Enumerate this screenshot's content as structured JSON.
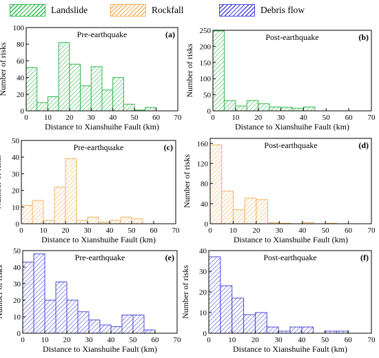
{
  "legend": {
    "items": [
      {
        "label": "Landslide",
        "color": "#2db84a"
      },
      {
        "label": "Rockfall",
        "color": "#f2b15e"
      },
      {
        "label": "Debris flow",
        "color": "#4848d8"
      }
    ]
  },
  "chart_data": [
    {
      "type": "bar",
      "panel_label": "(a)",
      "title": "Pre-earthquake",
      "series_name": "Landslide",
      "color": "#2db84a",
      "bin_edges": [
        0,
        5,
        10,
        15,
        20,
        25,
        30,
        35,
        40,
        45,
        50,
        55,
        60
      ],
      "values": [
        52,
        10,
        17,
        82,
        56,
        30,
        53,
        25,
        40,
        8,
        1,
        4
      ],
      "xlabel": "Distance to Xianshuihe Fault (km)",
      "ylabel": "Number of risks",
      "xlim": [
        0,
        70
      ],
      "ylim": [
        0,
        100
      ],
      "xticks": [
        0,
        10,
        20,
        30,
        40,
        50,
        60,
        70
      ],
      "yticks": [
        0,
        20,
        40,
        60,
        80,
        100
      ]
    },
    {
      "type": "bar",
      "panel_label": "(b)",
      "title": "Post-earthquake",
      "series_name": "Landslide",
      "color": "#2db84a",
      "bin_edges": [
        0,
        5,
        10,
        15,
        20,
        25,
        30,
        35,
        40,
        45
      ],
      "values": [
        248,
        32,
        15,
        32,
        22,
        12,
        11,
        8,
        12
      ],
      "xlabel": "Distance to Xianshuihe Fault (km)",
      "ylabel": "Number of risks",
      "xlim": [
        0,
        70
      ],
      "ylim": [
        0,
        250
      ],
      "xticks": [
        0,
        10,
        20,
        30,
        40,
        50,
        60,
        70
      ],
      "yticks": [
        0,
        50,
        100,
        150,
        200,
        250
      ]
    },
    {
      "type": "bar",
      "panel_label": "(c)",
      "title": "Pre-earthquake",
      "series_name": "Rockfall",
      "color": "#f2b15e",
      "bin_edges": [
        0,
        5,
        10,
        15,
        20,
        25,
        30,
        35,
        40,
        45,
        50,
        55
      ],
      "values": [
        11,
        14,
        2,
        22,
        39,
        2,
        4,
        1,
        2,
        4,
        3
      ],
      "xlabel": "Distance to Xianshuihe Fault (km)",
      "ylabel": "Number of risks",
      "xlim": [
        0,
        70
      ],
      "ylim": [
        0,
        50
      ],
      "xticks": [
        0,
        10,
        20,
        30,
        40,
        50,
        60,
        70
      ],
      "yticks": [
        0,
        10,
        20,
        30,
        40,
        50
      ]
    },
    {
      "type": "bar",
      "panel_label": "(d)",
      "title": "Post-earthquake",
      "series_name": "Rockfall",
      "color": "#f2b15e",
      "bin_edges": [
        0,
        5,
        10,
        15,
        20,
        25,
        30,
        35,
        40,
        45,
        50,
        55
      ],
      "values": [
        157,
        65,
        28,
        51,
        48,
        2,
        1,
        0,
        2,
        0,
        1
      ],
      "xlabel": "Distance to Xianshuihe Fault (km)",
      "ylabel": "Number of risks",
      "xlim": [
        0,
        70
      ],
      "ylim": [
        0,
        170
      ],
      "xticks": [
        0,
        10,
        20,
        30,
        40,
        50,
        60,
        70
      ],
      "yticks": [
        0,
        40,
        80,
        120,
        160
      ]
    },
    {
      "type": "bar",
      "panel_label": "(e)",
      "title": "Pre-earthquake",
      "series_name": "Debris flow",
      "color": "#4848d8",
      "bin_edges": [
        0,
        5,
        10,
        15,
        20,
        25,
        30,
        35,
        40,
        45,
        50,
        55,
        60
      ],
      "values": [
        43,
        48,
        20,
        31,
        20,
        13,
        8,
        5,
        4,
        11,
        11,
        2
      ],
      "xlabel": "Distance to Xianshuihe Fault (km)",
      "ylabel": "Number of risks",
      "xlim": [
        0,
        70
      ],
      "ylim": [
        0,
        50
      ],
      "xticks": [
        0,
        10,
        20,
        30,
        40,
        50,
        60,
        70
      ],
      "yticks": [
        0,
        10,
        20,
        30,
        40,
        50
      ]
    },
    {
      "type": "bar",
      "panel_label": "(f)",
      "title": "Post-earthquake",
      "series_name": "Debris flow",
      "color": "#4848d8",
      "bin_edges": [
        0,
        5,
        10,
        15,
        20,
        25,
        30,
        35,
        40,
        45,
        50,
        55,
        60
      ],
      "values": [
        37,
        23,
        17,
        9,
        10,
        3,
        1,
        3,
        3,
        0,
        1,
        1
      ],
      "xlabel": "Distance to Xianshuihe Fault (km)",
      "ylabel": "Number of risks",
      "xlim": [
        0,
        70
      ],
      "ylim": [
        0,
        40
      ],
      "xticks": [
        0,
        10,
        20,
        30,
        40,
        50,
        60,
        70
      ],
      "yticks": [
        0,
        10,
        20,
        30,
        40
      ]
    }
  ]
}
